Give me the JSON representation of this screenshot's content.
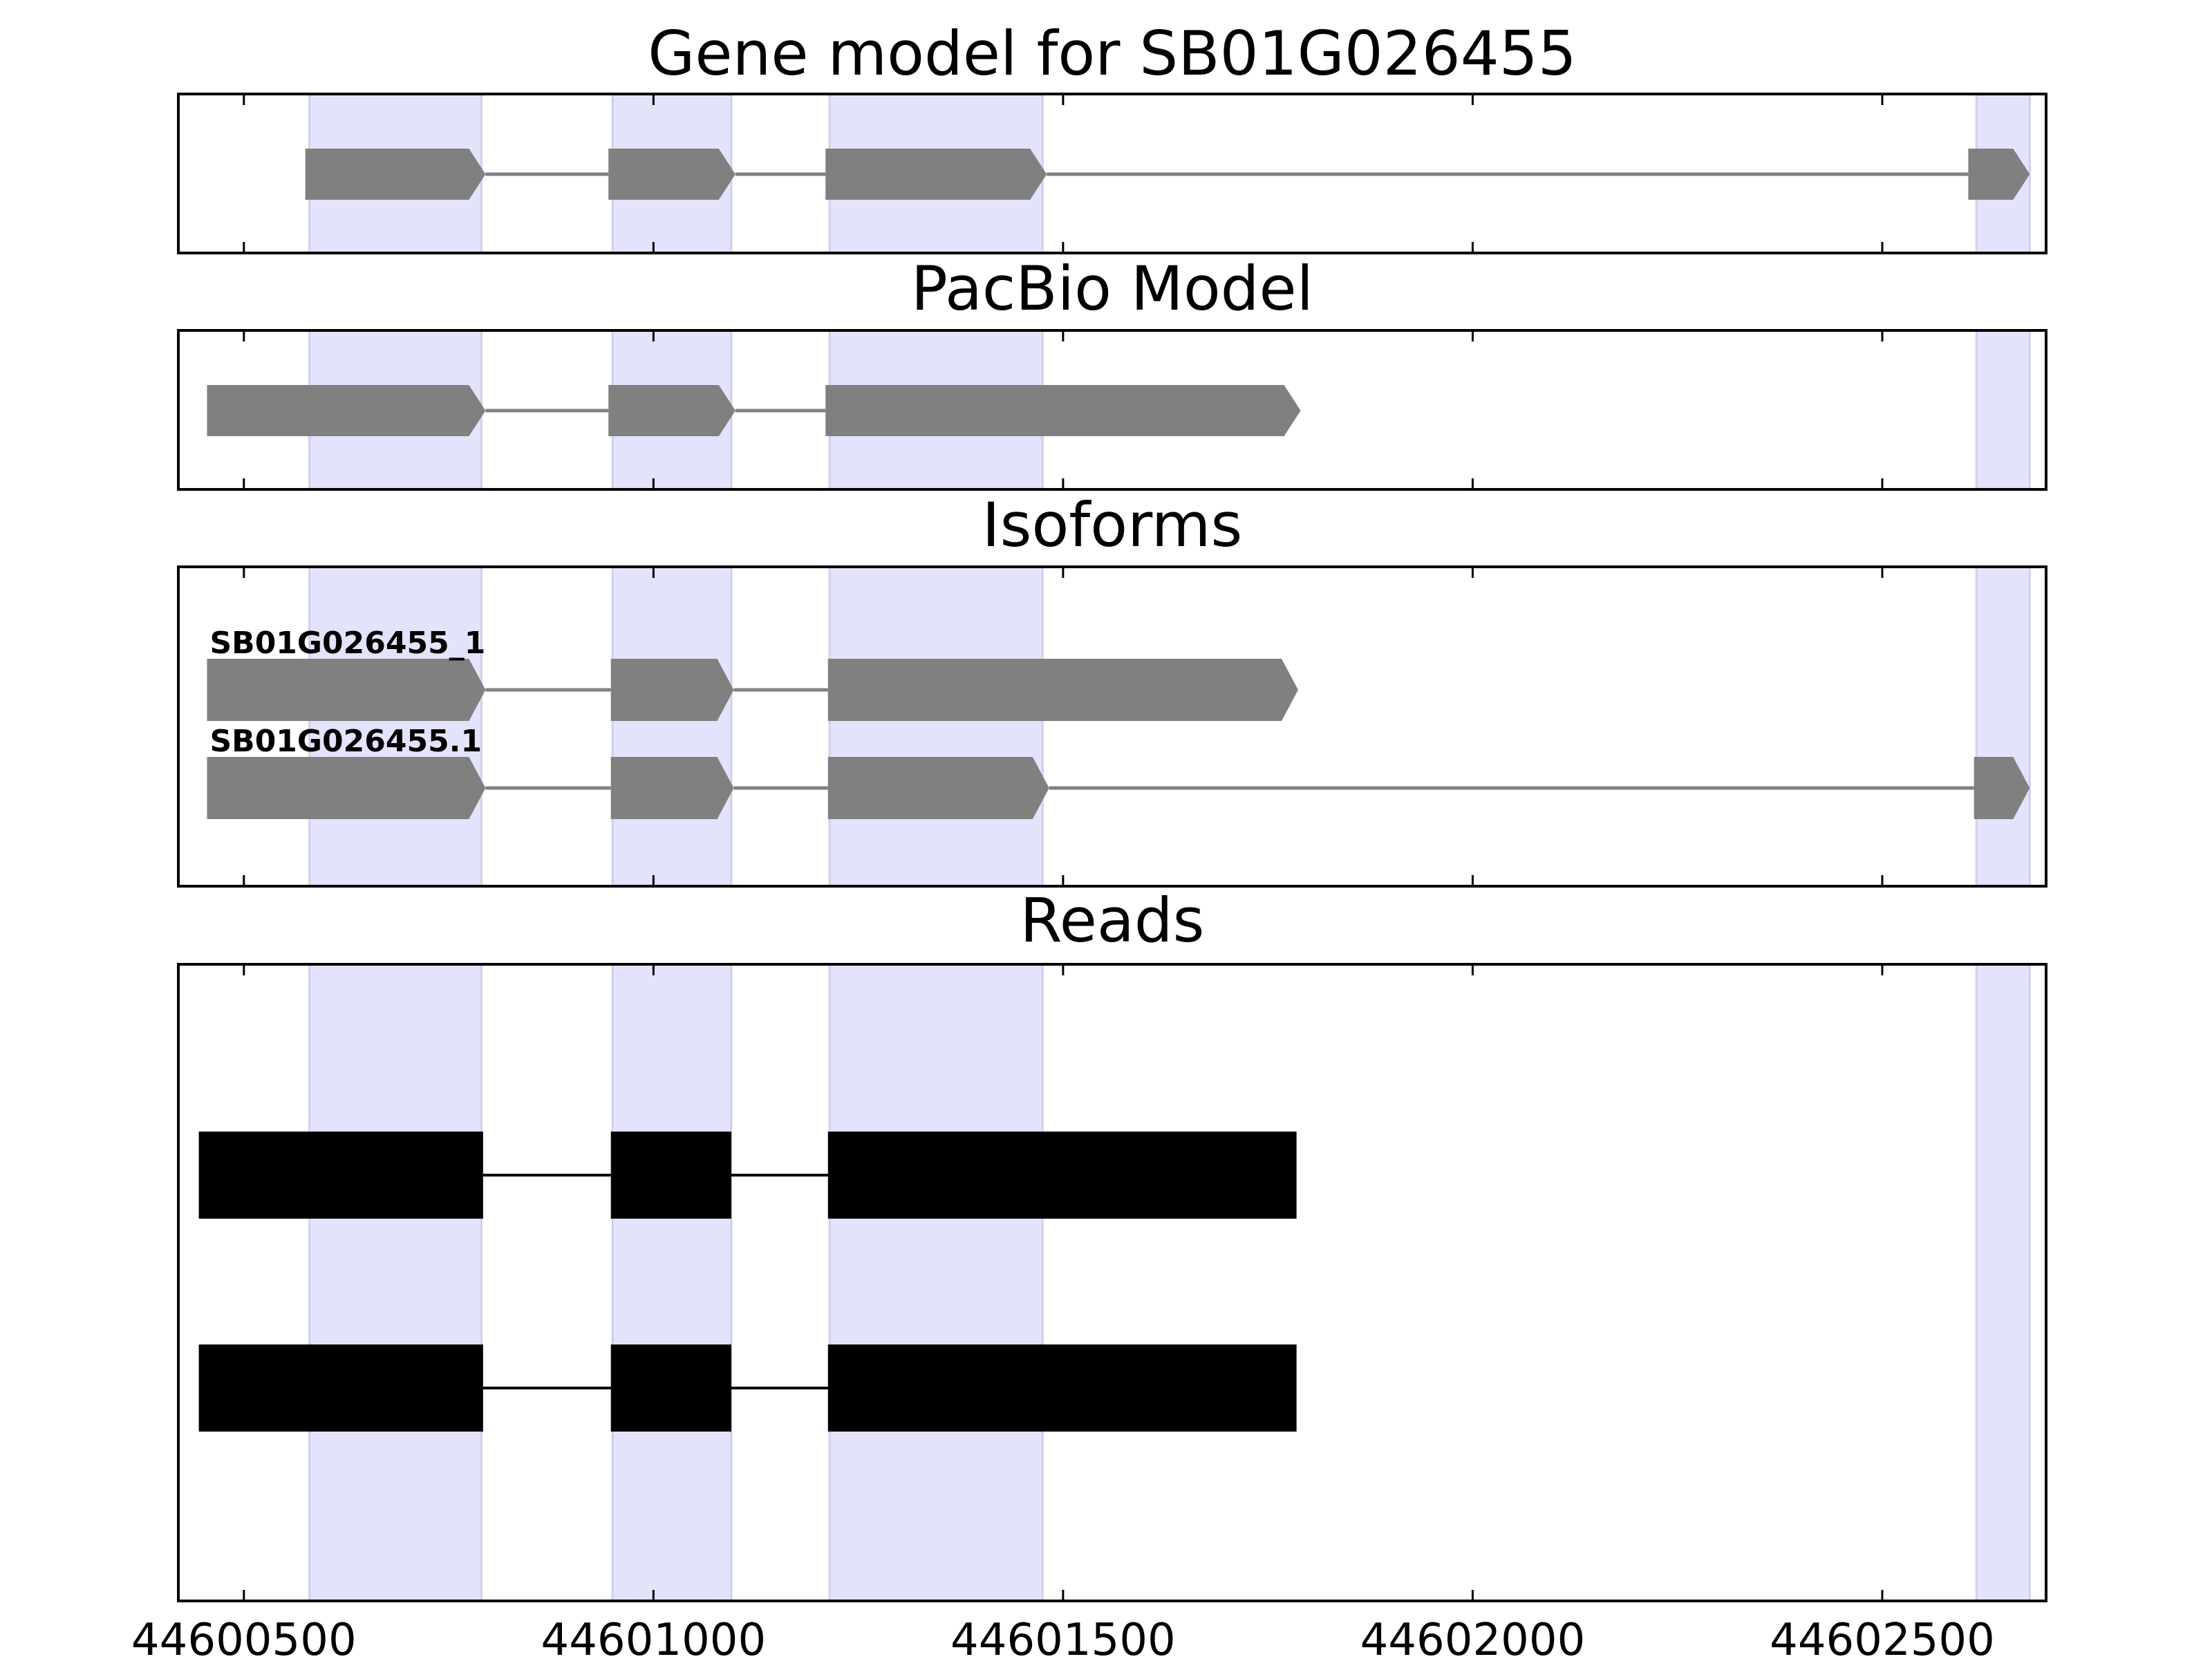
{
  "chart_data": {
    "type": "gene-structure",
    "x_range": [
      44600420,
      44602700
    ],
    "x_ticks": [
      44600500,
      44601000,
      44601500,
      44602000,
      44602500
    ],
    "x_tick_labels": [
      "44600500",
      "44601000",
      "44601500",
      "44602000",
      "44602500"
    ],
    "colors": {
      "band": "#e3e3fc",
      "band_edge": "#cfcfee",
      "model": "#808080",
      "read": "#000000",
      "frame": "#000000"
    },
    "highlight_regions": [
      [
        44600580,
        44600790
      ],
      [
        44600950,
        44601095
      ],
      [
        44601215,
        44601475
      ],
      [
        44602615,
        44602680
      ]
    ],
    "panels": [
      {
        "title": "Gene model for SB01G026455",
        "tracks": [
          {
            "label": "",
            "exons": [
              [
                44600575,
                44600795
              ],
              [
                44600945,
                44601100
              ],
              [
                44601210,
                44601480
              ],
              [
                44602605,
                44602680
              ]
            ]
          }
        ]
      },
      {
        "title": "PacBio Model",
        "tracks": [
          {
            "label": "",
            "exons": [
              [
                44600455,
                44600795
              ],
              [
                44600945,
                44601100
              ],
              [
                44601210,
                44601790
              ]
            ]
          }
        ]
      },
      {
        "title": "Isoforms",
        "tracks": [
          {
            "label": "SB01G026455_1",
            "exons": [
              [
                44600455,
                44600795
              ],
              [
                44600948,
                44601098
              ],
              [
                44601213,
                44601787
              ]
            ]
          },
          {
            "label": "SB01G026455.1",
            "exons": [
              [
                44600455,
                44600795
              ],
              [
                44600948,
                44601098
              ],
              [
                44601213,
                44601483
              ],
              [
                44602612,
                44602680
              ]
            ]
          }
        ]
      },
      {
        "title": "Reads",
        "tracks": [
          {
            "label": "",
            "exons": [
              [
                44600445,
                44600792
              ],
              [
                44600948,
                44601095
              ],
              [
                44601213,
                44601785
              ]
            ]
          },
          {
            "label": "",
            "exons": [
              [
                44600445,
                44600792
              ],
              [
                44600948,
                44601095
              ],
              [
                44601213,
                44601785
              ]
            ]
          }
        ]
      }
    ]
  }
}
